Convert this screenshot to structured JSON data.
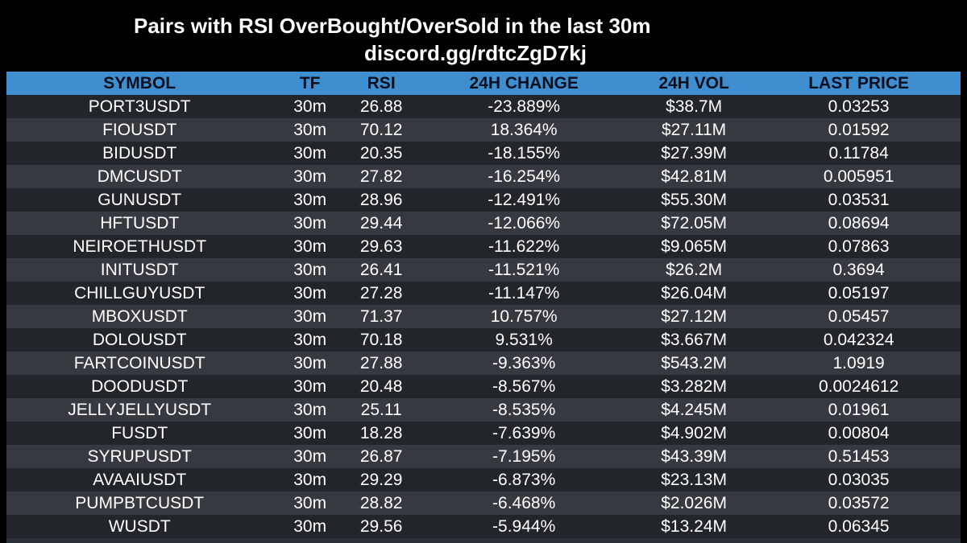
{
  "title": "Pairs with RSI OverBought/OverSold in the last 30m",
  "subtitle": "discord.gg/rdtcZgD7kj",
  "colors": {
    "background": "#000000",
    "header_bg": "#3f8fd0",
    "row_dark": "#22262b",
    "row_light": "#363a40",
    "text": "#ffffff"
  },
  "table": {
    "headers": {
      "symbol": "SYMBOL",
      "tf": "TF",
      "rsi": "RSI",
      "change": "24H CHANGE",
      "vol": "24H VOL",
      "price": "LAST PRICE"
    },
    "rows": [
      {
        "symbol": "PORT3USDT",
        "tf": "30m",
        "rsi": "26.88",
        "change": "-23.889%",
        "vol": "$38.7M",
        "price": "0.03253"
      },
      {
        "symbol": "FIOUSDT",
        "tf": "30m",
        "rsi": "70.12",
        "change": "18.364%",
        "vol": "$27.11M",
        "price": "0.01592"
      },
      {
        "symbol": "BIDUSDT",
        "tf": "30m",
        "rsi": "20.35",
        "change": "-18.155%",
        "vol": "$27.39M",
        "price": "0.11784"
      },
      {
        "symbol": "DMCUSDT",
        "tf": "30m",
        "rsi": "27.82",
        "change": "-16.254%",
        "vol": "$42.81M",
        "price": "0.005951"
      },
      {
        "symbol": "GUNUSDT",
        "tf": "30m",
        "rsi": "28.96",
        "change": "-12.491%",
        "vol": "$55.30M",
        "price": "0.03531"
      },
      {
        "symbol": "HFTUSDT",
        "tf": "30m",
        "rsi": "29.44",
        "change": "-12.066%",
        "vol": "$72.05M",
        "price": "0.08694"
      },
      {
        "symbol": "NEIROETHUSDT",
        "tf": "30m",
        "rsi": "29.63",
        "change": "-11.622%",
        "vol": "$9.065M",
        "price": "0.07863"
      },
      {
        "symbol": "INITUSDT",
        "tf": "30m",
        "rsi": "26.41",
        "change": "-11.521%",
        "vol": "$26.2M",
        "price": "0.3694"
      },
      {
        "symbol": "CHILLGUYUSDT",
        "tf": "30m",
        "rsi": "27.28",
        "change": "-11.147%",
        "vol": "$26.04M",
        "price": "0.05197"
      },
      {
        "symbol": "MBOXUSDT",
        "tf": "30m",
        "rsi": "71.37",
        "change": "10.757%",
        "vol": "$27.12M",
        "price": "0.05457"
      },
      {
        "symbol": "DOLOUSDT",
        "tf": "30m",
        "rsi": "70.18",
        "change": "9.531%",
        "vol": "$3.667M",
        "price": "0.042324"
      },
      {
        "symbol": "FARTCOINUSDT",
        "tf": "30m",
        "rsi": "27.88",
        "change": "-9.363%",
        "vol": "$543.2M",
        "price": "1.0919"
      },
      {
        "symbol": "DOODUSDT",
        "tf": "30m",
        "rsi": "20.48",
        "change": "-8.567%",
        "vol": "$3.282M",
        "price": "0.0024612"
      },
      {
        "symbol": "JELLYJELLYUSDT",
        "tf": "30m",
        "rsi": "25.11",
        "change": "-8.535%",
        "vol": "$4.245M",
        "price": "0.01961"
      },
      {
        "symbol": "FUSDT",
        "tf": "30m",
        "rsi": "18.28",
        "change": "-7.639%",
        "vol": "$4.902M",
        "price": "0.00804"
      },
      {
        "symbol": "SYRUPUSDT",
        "tf": "30m",
        "rsi": "26.87",
        "change": "-7.195%",
        "vol": "$43.39M",
        "price": "0.51453"
      },
      {
        "symbol": "AVAAIUSDT",
        "tf": "30m",
        "rsi": "29.29",
        "change": "-6.873%",
        "vol": "$23.13M",
        "price": "0.03035"
      },
      {
        "symbol": "PUMPBTCUSDT",
        "tf": "30m",
        "rsi": "28.82",
        "change": "-6.468%",
        "vol": "$2.026M",
        "price": "0.03572"
      },
      {
        "symbol": "WUSDT",
        "tf": "30m",
        "rsi": "29.56",
        "change": "-5.944%",
        "vol": "$13.24M",
        "price": "0.06345"
      }
    ]
  }
}
